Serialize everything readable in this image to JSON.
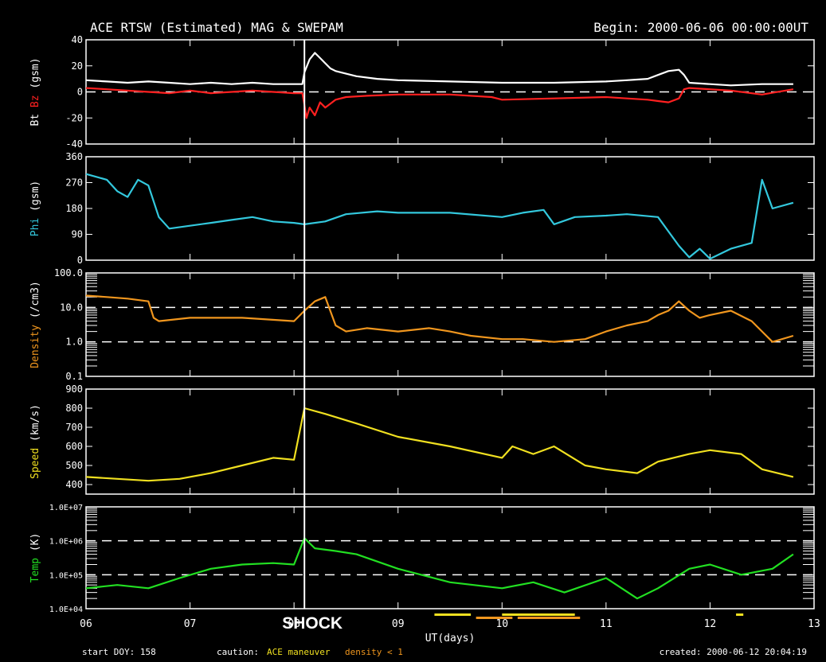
{
  "title": "ACE RTSW (Estimated) MAG & SWEPAM",
  "begin": "Begin: 2000-06-06 00:00:00UT",
  "footer": {
    "start_doy": "start DOY: 158",
    "caution_label": "caution:",
    "caution_maneuver": "ACE maneuver",
    "caution_density": "density < 1",
    "created": "created:  2000-06-12 20:04:19"
  },
  "shock_label": "SHOCK",
  "colors": {
    "background": "#000000",
    "frame": "#ffffff",
    "bt": "#ffffff",
    "bz": "#ff2020",
    "phi": "#33c8dd",
    "density": "#f0961e",
    "speed": "#f0e020",
    "temp": "#22e022",
    "maneuver": "#f0e020",
    "density_flag": "#f0961e"
  },
  "chart_data": {
    "type": "line",
    "xlabel": "UT(days)",
    "xlim": [
      6,
      13
    ],
    "x_ticks": [
      "06",
      "07",
      "08",
      "09",
      "10",
      "11",
      "12",
      "13"
    ],
    "shock_day": 8.1,
    "maneuver_days": [
      [
        9.35,
        9.7
      ],
      [
        10.0,
        10.7
      ],
      [
        12.25,
        12.32
      ]
    ],
    "density_flag_days": [
      [
        9.75,
        10.1
      ],
      [
        10.15,
        10.75
      ]
    ],
    "panels": [
      {
        "name": "mag",
        "ylabel_parts": [
          {
            "text": "Bt",
            "color": "#ffffff"
          },
          {
            "text": "Bz",
            "color": "#ff2020"
          },
          {
            "text": "(gsm)",
            "color": "#ffffff"
          }
        ],
        "ylim": [
          -40,
          40
        ],
        "scale": "linear",
        "yticks": [
          "40",
          "20",
          "0",
          "-20",
          "-40"
        ],
        "ytick_values": [
          40,
          20,
          0,
          -20,
          -40
        ],
        "dashed": [
          0
        ],
        "series": [
          {
            "name": "Bt",
            "color": "#ffffff",
            "x": [
              6.0,
              6.2,
              6.4,
              6.6,
              6.8,
              7.0,
              7.2,
              7.4,
              7.6,
              7.8,
              8.0,
              8.08,
              8.1,
              8.15,
              8.2,
              8.25,
              8.3,
              8.35,
              8.4,
              8.5,
              8.6,
              8.8,
              9.0,
              9.5,
              10.0,
              10.5,
              11.0,
              11.2,
              11.4,
              11.5,
              11.6,
              11.7,
              11.75,
              11.8,
              12.0,
              12.2,
              12.5,
              12.8
            ],
            "y": [
              9,
              8,
              7,
              8,
              7,
              6,
              7,
              6,
              7,
              6,
              6,
              6,
              15,
              25,
              30,
              26,
              22,
              18,
              16,
              14,
              12,
              10,
              9,
              8,
              7,
              7,
              8,
              9,
              10,
              13,
              16,
              17,
              13,
              7,
              6,
              5,
              6,
              6
            ]
          },
          {
            "name": "Bz",
            "color": "#ff2020",
            "x": [
              6.0,
              6.2,
              6.4,
              6.6,
              6.8,
              7.0,
              7.2,
              7.4,
              7.6,
              7.8,
              8.0,
              8.08,
              8.1,
              8.12,
              8.15,
              8.2,
              8.25,
              8.3,
              8.4,
              8.5,
              8.7,
              9.0,
              9.5,
              9.9,
              10.0,
              10.5,
              11.0,
              11.2,
              11.4,
              11.5,
              11.6,
              11.7,
              11.75,
              11.8,
              12.0,
              12.2,
              12.5,
              12.8
            ],
            "y": [
              3,
              2,
              1,
              0,
              -1,
              1,
              -1,
              0,
              1,
              0,
              -1,
              -1,
              -10,
              -20,
              -12,
              -18,
              -8,
              -12,
              -6,
              -4,
              -3,
              -2,
              -2,
              -4,
              -6,
              -5,
              -4,
              -5,
              -6,
              -7,
              -8,
              -5,
              2,
              3,
              2,
              1,
              -2,
              2
            ]
          }
        ]
      },
      {
        "name": "phi",
        "ylabel_parts": [
          {
            "text": "Phi",
            "color": "#33c8dd"
          },
          {
            "text": "(gsm)",
            "color": "#ffffff"
          }
        ],
        "ylim": [
          0,
          360
        ],
        "scale": "linear",
        "yticks": [
          "360",
          "270",
          "180",
          "90",
          "0"
        ],
        "ytick_values": [
          360,
          270,
          180,
          90,
          0
        ],
        "dashed": [],
        "series": [
          {
            "name": "Phi",
            "color": "#33c8dd",
            "x": [
              6.0,
              6.1,
              6.2,
              6.3,
              6.4,
              6.5,
              6.6,
              6.7,
              6.8,
              7.0,
              7.2,
              7.4,
              7.6,
              7.8,
              8.0,
              8.1,
              8.3,
              8.5,
              8.8,
              9.0,
              9.5,
              10.0,
              10.2,
              10.4,
              10.5,
              10.7,
              11.0,
              11.2,
              11.5,
              11.6,
              11.7,
              11.8,
              11.9,
              12.0,
              12.2,
              12.4,
              12.5,
              12.6,
              12.8
            ],
            "y": [
              300,
              290,
              280,
              240,
              220,
              280,
              260,
              150,
              110,
              120,
              130,
              140,
              150,
              135,
              130,
              125,
              135,
              160,
              170,
              165,
              165,
              150,
              165,
              175,
              125,
              150,
              155,
              160,
              150,
              100,
              50,
              10,
              40,
              5,
              40,
              60,
              280,
              180,
              200
            ]
          }
        ]
      },
      {
        "name": "density",
        "ylabel_parts": [
          {
            "text": "Density",
            "color": "#f0961e"
          },
          {
            "text": "(/cm3)",
            "color": "#ffffff"
          }
        ],
        "ylim": [
          0.1,
          100
        ],
        "scale": "log",
        "yticks": [
          "100.0",
          "10.0",
          "1.0",
          "0.1"
        ],
        "ytick_values": [
          100,
          10,
          1,
          0.1
        ],
        "dashed": [
          10,
          1
        ],
        "series": [
          {
            "name": "Density",
            "color": "#f0961e",
            "x": [
              6.0,
              6.2,
              6.4,
              6.6,
              6.65,
              6.7,
              7.0,
              7.5,
              8.0,
              8.1,
              8.2,
              8.3,
              8.4,
              8.5,
              8.7,
              9.0,
              9.3,
              9.5,
              9.7,
              10.0,
              10.2,
              10.5,
              10.8,
              11.0,
              11.2,
              11.4,
              11.5,
              11.6,
              11.7,
              11.8,
              11.9,
              12.0,
              12.2,
              12.4,
              12.5,
              12.6,
              12.8
            ],
            "y": [
              22,
              20,
              18,
              15,
              5,
              4,
              5,
              5,
              4,
              8,
              15,
              20,
              3,
              2,
              2.5,
              2,
              2.5,
              2,
              1.5,
              1.2,
              1.2,
              1,
              1.2,
              2,
              3,
              4,
              6,
              8,
              15,
              8,
              5,
              6,
              8,
              4,
              2,
              1,
              1.5
            ]
          }
        ]
      },
      {
        "name": "speed",
        "ylabel_parts": [
          {
            "text": "Speed",
            "color": "#f0e020"
          },
          {
            "text": "(km/s)",
            "color": "#ffffff"
          }
        ],
        "ylim": [
          350,
          900
        ],
        "scale": "linear",
        "yticks": [
          "900",
          "800",
          "700",
          "600",
          "500",
          "400"
        ],
        "ytick_values": [
          900,
          800,
          700,
          600,
          500,
          400
        ],
        "dashed": [],
        "series": [
          {
            "name": "Speed",
            "color": "#f0e020",
            "x": [
              6.0,
              6.3,
              6.6,
              6.9,
              7.2,
              7.5,
              7.8,
              8.0,
              8.1,
              8.3,
              8.6,
              9.0,
              9.5,
              10.0,
              10.1,
              10.3,
              10.5,
              10.8,
              11.0,
              11.3,
              11.5,
              11.8,
              12.0,
              12.3,
              12.5,
              12.8
            ],
            "y": [
              440,
              430,
              420,
              430,
              460,
              500,
              540,
              530,
              800,
              770,
              720,
              650,
              600,
              540,
              600,
              560,
              600,
              500,
              480,
              460,
              520,
              560,
              580,
              560,
              480,
              440
            ]
          }
        ]
      },
      {
        "name": "temp",
        "ylabel_parts": [
          {
            "text": "Temp",
            "color": "#22e022"
          },
          {
            "text": "(K)",
            "color": "#ffffff"
          }
        ],
        "ylim": [
          10000,
          10000000
        ],
        "scale": "log",
        "yticks": [
          "1.0E+07",
          "1.0E+06",
          "1.0E+05",
          "1.0E+04"
        ],
        "ytick_values": [
          10000000,
          1000000,
          100000,
          10000
        ],
        "dashed": [
          1000000,
          100000
        ],
        "series": [
          {
            "name": "Temp",
            "color": "#22e022",
            "x": [
              6.0,
              6.3,
              6.6,
              6.9,
              7.2,
              7.5,
              7.8,
              8.0,
              8.1,
              8.2,
              8.4,
              8.6,
              9.0,
              9.5,
              10.0,
              10.3,
              10.6,
              11.0,
              11.3,
              11.5,
              11.8,
              12.0,
              12.3,
              12.6,
              12.8
            ],
            "y": [
              40000,
              50000,
              40000,
              80000,
              150000,
              200000,
              220000,
              200000,
              1200000,
              600000,
              500000,
              400000,
              150000,
              60000,
              40000,
              60000,
              30000,
              80000,
              20000,
              40000,
              150000,
              200000,
              100000,
              150000,
              400000
            ]
          }
        ]
      }
    ]
  }
}
